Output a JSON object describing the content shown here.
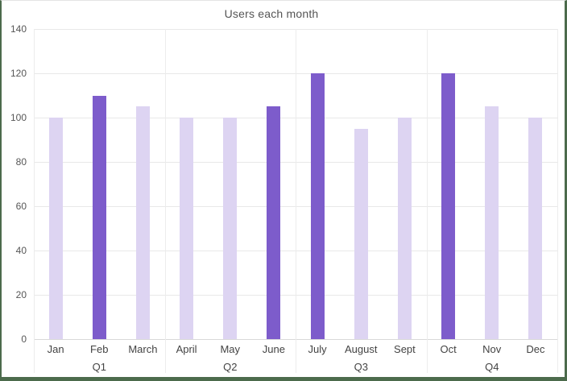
{
  "chart_data": {
    "type": "bar",
    "title": "Users each month",
    "categories": [
      "Jan",
      "Feb",
      "March",
      "April",
      "May",
      "June",
      "July",
      "August",
      "Sept",
      "Oct",
      "Nov",
      "Dec"
    ],
    "values": [
      100,
      110,
      105,
      100,
      100,
      105,
      120,
      95,
      100,
      120,
      105,
      100
    ],
    "highlighted": [
      false,
      true,
      false,
      false,
      false,
      true,
      true,
      false,
      false,
      true,
      false,
      false
    ],
    "group_labels": [
      "Q1",
      "Q2",
      "Q3",
      "Q4"
    ],
    "months_per_group": 3,
    "xlabel": "",
    "ylabel": "",
    "ylim": [
      0,
      140
    ],
    "yticks": [
      0,
      20,
      40,
      60,
      80,
      100,
      120,
      140
    ],
    "grid": true,
    "legend_position": "none",
    "colors": {
      "bar_default": "#ddd4f2",
      "bar_highlight": "#7d5ccb",
      "gridline": "#e8e8e8",
      "zero_axis_line": "#d9d9d9",
      "quarter_separator": "#ececec",
      "title_text": "#555555",
      "tick_text": "#565656",
      "label_text": "#434343",
      "frame_border": "#4c6b4c",
      "frame_top_line": "#e4e4e4",
      "background": "#ffffff"
    }
  }
}
